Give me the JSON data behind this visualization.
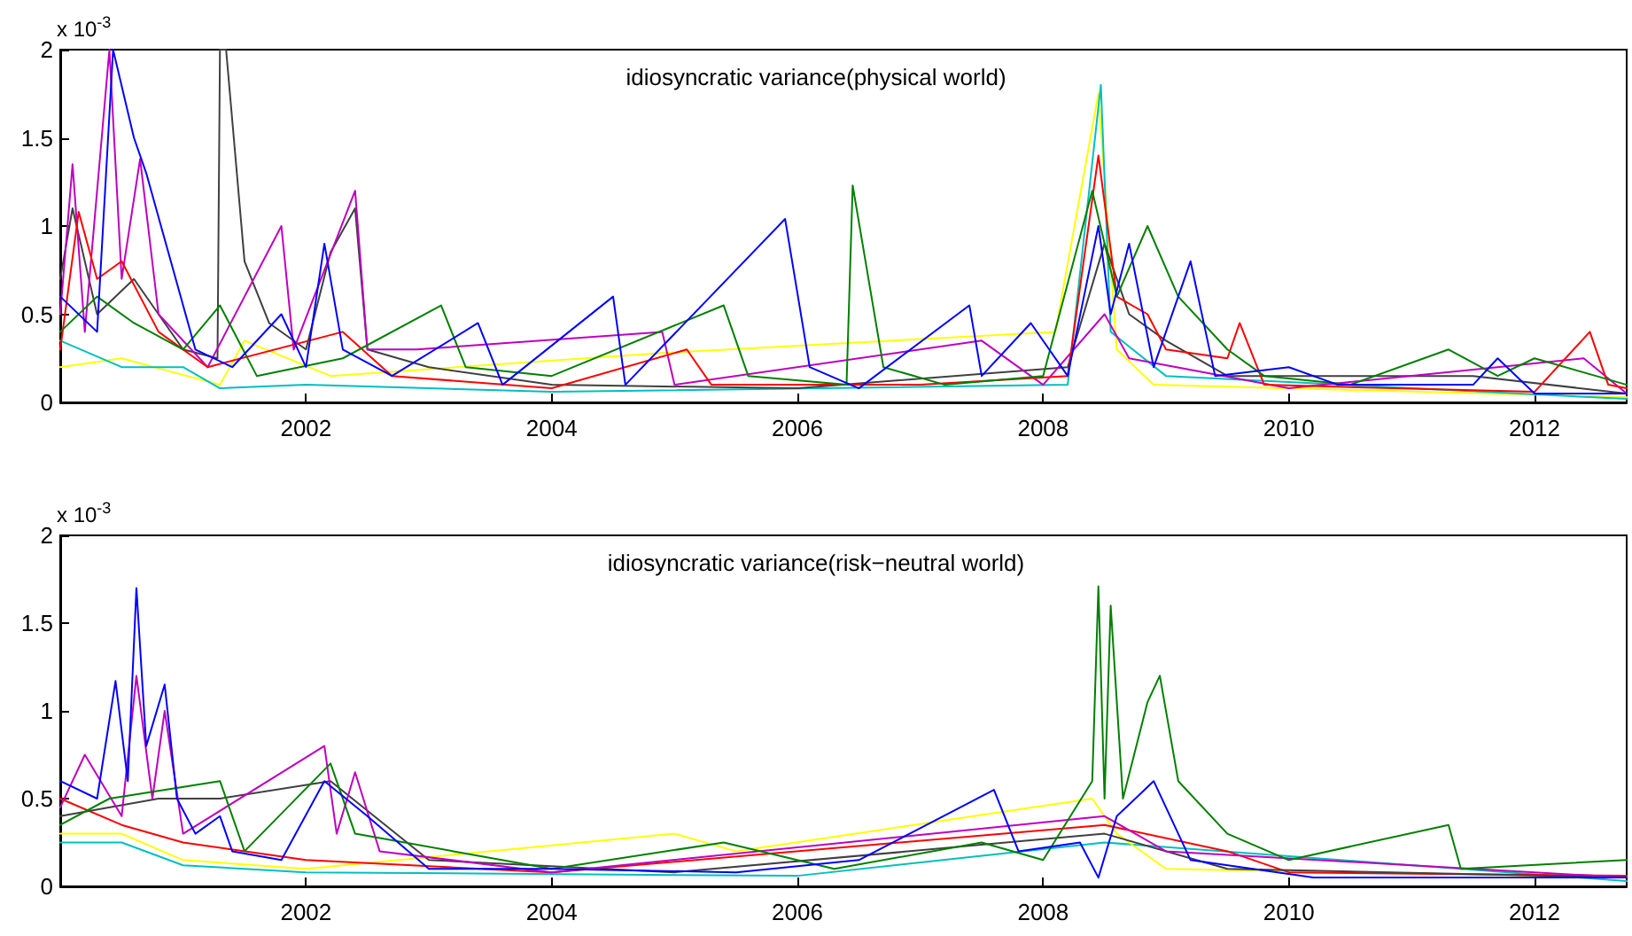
{
  "chart_data": [
    {
      "type": "line",
      "title": "idiosyncratic variance(physical world)",
      "annotations": [
        "x 10$^{-3}$"
      ],
      "xlim": [
        2000,
        2012.75
      ],
      "xticks": [
        2002,
        2004,
        2006,
        2008,
        2010,
        2012
      ],
      "ylim": [
        0,
        2
      ],
      "yticks": [
        0,
        0.5,
        1,
        1.5,
        2
      ],
      "marker": "none",
      "line_style": "solid",
      "series": [
        {
          "color": "#ffff00",
          "x": [
            2000.0,
            2000.5,
            2001.3,
            2001.5,
            2002.2,
            2004.9,
            2008.1,
            2008.45,
            2008.6,
            2008.9,
            2012.75
          ],
          "values": [
            0.2,
            0.25,
            0.1,
            0.35,
            0.15,
            0.28,
            0.4,
            1.75,
            0.3,
            0.1,
            0.03
          ]
        },
        {
          "color": "#00bfbf",
          "x": [
            2000.0,
            2000.5,
            2001.0,
            2001.3,
            2002.0,
            2004.0,
            2008.2,
            2008.47,
            2008.55,
            2009.0,
            2012.75
          ],
          "values": [
            0.35,
            0.2,
            0.2,
            0.08,
            0.1,
            0.06,
            0.1,
            1.8,
            0.4,
            0.15,
            0.02
          ]
        },
        {
          "color": "#404040",
          "x": [
            2000.0,
            2000.1,
            2000.3,
            2000.6,
            2001.0,
            2001.28,
            2001.3,
            2001.35,
            2001.5,
            2001.7,
            2002.0,
            2002.2,
            2002.4,
            2002.5,
            2003.0,
            2004.0,
            2006.0,
            2008.2,
            2008.5,
            2008.7,
            2009.0,
            2009.5,
            2011.5,
            2012.75
          ],
          "values": [
            0.7,
            1.1,
            0.5,
            0.7,
            0.3,
            0.25,
            2.0,
            2.0,
            0.8,
            0.45,
            0.3,
            0.85,
            1.1,
            0.3,
            0.2,
            0.1,
            0.08,
            0.2,
            0.9,
            0.5,
            0.35,
            0.15,
            0.15,
            0.05
          ]
        },
        {
          "color": "#bf00bf",
          "x": [
            2000.0,
            2000.1,
            2000.2,
            2000.4,
            2000.5,
            2000.65,
            2000.8,
            2001.2,
            2001.8,
            2001.9,
            2002.4,
            2002.5,
            2002.9,
            2004.9,
            2005.0,
            2007.5,
            2008.0,
            2008.5,
            2008.7,
            2010.0,
            2011.7,
            2012.4,
            2012.75
          ],
          "values": [
            0.5,
            1.35,
            0.4,
            2.0,
            0.7,
            1.38,
            0.5,
            0.2,
            1.0,
            0.3,
            1.2,
            0.3,
            0.3,
            0.4,
            0.1,
            0.35,
            0.1,
            0.5,
            0.25,
            0.08,
            0.2,
            0.25,
            0.05
          ]
        },
        {
          "color": "#ff0000",
          "x": [
            2000.0,
            2000.15,
            2000.3,
            2000.5,
            2000.8,
            2001.2,
            2002.3,
            2002.7,
            2004.0,
            2005.1,
            2005.3,
            2007.0,
            2008.2,
            2008.45,
            2008.6,
            2008.85,
            2009.0,
            2009.5,
            2009.6,
            2009.8,
            2012.0,
            2012.45,
            2012.6,
            2012.75
          ],
          "values": [
            0.3,
            1.08,
            0.7,
            0.8,
            0.4,
            0.2,
            0.4,
            0.15,
            0.08,
            0.3,
            0.1,
            0.1,
            0.15,
            1.4,
            0.6,
            0.5,
            0.3,
            0.25,
            0.45,
            0.1,
            0.06,
            0.4,
            0.1,
            0.08
          ]
        },
        {
          "color": "#008000",
          "x": [
            2000.0,
            2000.3,
            2000.6,
            2001.0,
            2001.3,
            2001.6,
            2002.3,
            2003.1,
            2003.3,
            2004.0,
            2005.4,
            2005.6,
            2006.4,
            2006.45,
            2006.7,
            2007.2,
            2008.0,
            2008.4,
            2008.6,
            2008.85,
            2009.1,
            2009.5,
            2009.8,
            2010.5,
            2011.3,
            2011.7,
            2012.0,
            2012.5,
            2012.75
          ],
          "values": [
            0.4,
            0.6,
            0.45,
            0.3,
            0.55,
            0.15,
            0.25,
            0.55,
            0.2,
            0.15,
            0.55,
            0.15,
            0.1,
            1.23,
            0.2,
            0.1,
            0.15,
            1.2,
            0.6,
            1.0,
            0.6,
            0.3,
            0.15,
            0.1,
            0.3,
            0.15,
            0.25,
            0.15,
            0.1
          ]
        },
        {
          "color": "#0000ff",
          "x": [
            2000.0,
            2000.3,
            2000.43,
            2000.6,
            2000.7,
            2000.9,
            2001.1,
            2001.4,
            2001.8,
            2002.0,
            2002.15,
            2002.3,
            2002.7,
            2003.4,
            2003.6,
            2004.5,
            2004.6,
            2005.9,
            2006.1,
            2006.5,
            2007.4,
            2007.5,
            2007.9,
            2008.2,
            2008.45,
            2008.55,
            2008.7,
            2008.9,
            2009.2,
            2009.4,
            2010.0,
            2010.4,
            2011.5,
            2011.7,
            2012.0,
            2012.75
          ],
          "values": [
            0.6,
            0.4,
            2.0,
            1.5,
            1.3,
            0.8,
            0.3,
            0.2,
            0.5,
            0.2,
            0.9,
            0.3,
            0.15,
            0.45,
            0.1,
            0.6,
            0.1,
            1.04,
            0.2,
            0.08,
            0.55,
            0.15,
            0.45,
            0.15,
            1.0,
            0.5,
            0.9,
            0.2,
            0.8,
            0.15,
            0.2,
            0.1,
            0.1,
            0.25,
            0.05,
            0.05
          ]
        }
      ]
    },
    {
      "type": "line",
      "title": "idiosyncratic variance(risk−neutral world)",
      "annotations": [
        "x 10$^{-3}$"
      ],
      "xlim": [
        2000,
        2012.75
      ],
      "xticks": [
        2002,
        2004,
        2006,
        2008,
        2010,
        2012
      ],
      "ylim": [
        0,
        2
      ],
      "yticks": [
        0,
        0.5,
        1,
        1.5,
        2
      ],
      "marker": "none",
      "line_style": "solid",
      "series": [
        {
          "color": "#00bfbf",
          "x": [
            2000.0,
            2000.5,
            2001.0,
            2002.0,
            2006.0,
            2008.5,
            2012.75
          ],
          "values": [
            0.25,
            0.25,
            0.12,
            0.08,
            0.06,
            0.25,
            0.03
          ]
        },
        {
          "color": "#ffff00",
          "x": [
            2000.0,
            2000.5,
            2001.0,
            2002.0,
            2005.0,
            2005.5,
            2008.4,
            2008.6,
            2009.0,
            2012.75
          ],
          "values": [
            0.3,
            0.3,
            0.15,
            0.1,
            0.3,
            0.2,
            0.5,
            0.3,
            0.1,
            0.05
          ]
        },
        {
          "color": "#ff0000",
          "x": [
            2000.0,
            2000.5,
            2001.0,
            2002.0,
            2004.0,
            2008.5,
            2009.5,
            2010.0,
            2012.75
          ],
          "values": [
            0.5,
            0.35,
            0.25,
            0.15,
            0.08,
            0.35,
            0.2,
            0.08,
            0.06
          ]
        },
        {
          "color": "#404040",
          "x": [
            2000.0,
            2000.8,
            2001.3,
            2002.2,
            2003.0,
            2005.0,
            2008.5,
            2009.5,
            2012.75
          ],
          "values": [
            0.4,
            0.5,
            0.5,
            0.6,
            0.15,
            0.08,
            0.3,
            0.1,
            0.05
          ]
        },
        {
          "color": "#bf00bf",
          "x": [
            2000.0,
            2000.2,
            2000.5,
            2000.62,
            2000.75,
            2000.85,
            2001.0,
            2002.15,
            2002.25,
            2002.4,
            2002.6,
            2004.0,
            2008.5,
            2009.0,
            2012.75
          ],
          "values": [
            0.45,
            0.75,
            0.4,
            1.2,
            0.5,
            1.0,
            0.3,
            0.8,
            0.3,
            0.65,
            0.2,
            0.08,
            0.4,
            0.2,
            0.05
          ]
        },
        {
          "color": "#008000",
          "x": [
            2000.0,
            2000.4,
            2001.3,
            2001.5,
            2002.2,
            2002.4,
            2003.2,
            2004.0,
            2005.4,
            2006.3,
            2007.5,
            2008.0,
            2008.4,
            2008.45,
            2008.5,
            2008.55,
            2008.65,
            2008.85,
            2008.95,
            2009.1,
            2009.5,
            2010.0,
            2011.3,
            2011.4,
            2012.75
          ],
          "values": [
            0.35,
            0.5,
            0.6,
            0.2,
            0.7,
            0.3,
            0.2,
            0.1,
            0.25,
            0.1,
            0.25,
            0.15,
            0.6,
            1.71,
            0.5,
            1.6,
            0.5,
            1.05,
            1.2,
            0.6,
            0.3,
            0.15,
            0.35,
            0.1,
            0.15
          ]
        },
        {
          "color": "#0000ff",
          "x": [
            2000.0,
            2000.3,
            2000.45,
            2000.55,
            2000.62,
            2000.7,
            2000.85,
            2000.95,
            2001.1,
            2001.3,
            2001.4,
            2001.8,
            2002.15,
            2002.5,
            2003.0,
            2004.0,
            2005.5,
            2006.5,
            2007.6,
            2007.8,
            2008.3,
            2008.45,
            2008.6,
            2008.9,
            2009.2,
            2010.2,
            2012.75
          ],
          "values": [
            0.6,
            0.5,
            1.17,
            0.6,
            1.7,
            0.8,
            1.15,
            0.5,
            0.3,
            0.4,
            0.2,
            0.15,
            0.6,
            0.4,
            0.1,
            0.1,
            0.08,
            0.15,
            0.55,
            0.2,
            0.25,
            0.05,
            0.4,
            0.6,
            0.15,
            0.05,
            0.05
          ]
        }
      ]
    }
  ]
}
